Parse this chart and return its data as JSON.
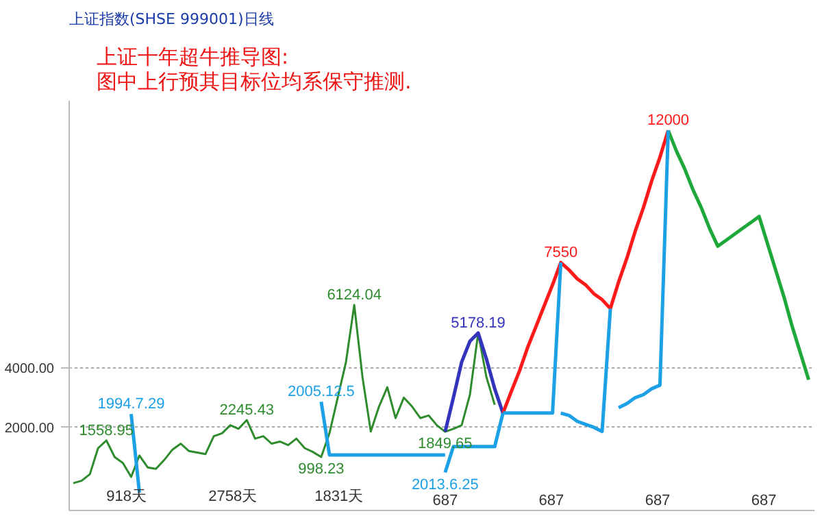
{
  "chart_data": {
    "type": "line",
    "title": "上证指数(SHSE 999001)日线",
    "subtitle": "上证十年超牛推导图:\n图中上行预其目标位均系保守推测.",
    "categories": [
      null,
      null,
      null,
      null,
      null,
      null,
      null,
      null,
      null,
      null,
      null,
      null,
      null,
      null,
      null,
      null,
      null,
      null,
      null,
      null,
      null,
      null,
      null,
      null,
      null,
      null,
      null,
      null,
      null,
      null,
      null,
      null,
      null,
      null,
      null,
      null,
      null,
      null,
      null,
      null,
      null,
      null,
      null,
      null,
      null,
      null,
      null,
      null,
      null,
      null,
      null,
      null,
      null,
      null,
      null,
      null,
      null,
      null,
      null,
      null,
      null,
      null,
      null,
      null,
      null,
      null,
      null,
      null,
      null,
      null,
      null,
      null,
      null,
      null,
      null,
      null,
      null,
      null,
      null,
      null,
      null,
      null,
      null,
      null,
      null,
      null,
      null,
      null,
      null,
      null
    ],
    "ylim": [
      -800,
      13000
    ],
    "yticks": [
      {
        "value": 2000,
        "label": "2000.00"
      },
      {
        "value": 4000,
        "label": "4000.00"
      }
    ],
    "tick_labels": "y",
    "grid": "y",
    "annotations": [
      "918天",
      "2758天",
      "1831天",
      "687",
      "687",
      "687",
      "687"
    ],
    "series": [
      {
        "color": "#2e8b2e",
        "values": [
          120,
          200,
          420,
          1300,
          1558.95,
          1000,
          800,
          330,
          1050,
          650,
          600,
          900,
          1250,
          1450,
          1200,
          1150,
          1100,
          1700,
          1800,
          2070,
          1950,
          2245.43,
          1620,
          1700,
          1450,
          1520,
          1400,
          1620,
          1300,
          1170,
          998.23,
          1800,
          3000,
          4200,
          6124.04,
          3690,
          1860,
          2700,
          3350,
          2310,
          3000,
          2700,
          2310,
          2400,
          2070,
          1849.65,
          1950,
          2070,
          3100,
          5178.19,
          3690,
          2760,
          null,
          null,
          null,
          null,
          null,
          null,
          null,
          null,
          null,
          null,
          null,
          null,
          null,
          null,
          null,
          null,
          null,
          null,
          null,
          null,
          null,
          null,
          null,
          null,
          null,
          null,
          null,
          null,
          null,
          null,
          null,
          null,
          null,
          null,
          null,
          null,
          null,
          null
        ],
        "value_labels": [
          null,
          null,
          null,
          null,
          "1558.95",
          null,
          null,
          null,
          null,
          null,
          null,
          null,
          null,
          null,
          null,
          null,
          null,
          null,
          null,
          null,
          null,
          "2245.43",
          null,
          null,
          null,
          null,
          null,
          null,
          null,
          null,
          "998.23",
          null,
          null,
          null,
          "6124.04",
          null,
          null,
          null,
          null,
          null,
          null,
          null,
          null,
          null,
          null,
          "1849.65",
          null,
          null,
          null,
          null,
          null,
          null,
          null,
          null,
          null,
          null,
          null,
          null,
          null,
          null,
          null,
          null,
          null,
          null,
          null,
          null,
          null,
          null,
          null,
          null,
          null,
          null,
          null,
          null,
          null,
          null,
          null,
          null,
          null,
          null,
          null,
          null,
          null,
          null,
          null,
          null,
          null,
          null,
          null,
          null
        ]
      },
      {
        "color": "#3333bb",
        "values": [
          null,
          null,
          null,
          null,
          null,
          null,
          null,
          null,
          null,
          null,
          null,
          null,
          null,
          null,
          null,
          null,
          null,
          null,
          null,
          null,
          null,
          null,
          null,
          null,
          null,
          null,
          null,
          null,
          null,
          null,
          null,
          null,
          null,
          null,
          null,
          null,
          null,
          null,
          null,
          null,
          null,
          null,
          null,
          null,
          null,
          1849.65,
          3000,
          4200,
          4900,
          5178.19,
          4300,
          3300,
          2480,
          null,
          null,
          null,
          null,
          null,
          null,
          null,
          null,
          null,
          null,
          null,
          null,
          null,
          null,
          null,
          null,
          null,
          null,
          null,
          null,
          null,
          null,
          null,
          null,
          null,
          null,
          null,
          null,
          null,
          null,
          null,
          null,
          null,
          null,
          null,
          null,
          null
        ],
        "value_labels": [
          null,
          null,
          null,
          null,
          null,
          null,
          null,
          null,
          null,
          null,
          null,
          null,
          null,
          null,
          null,
          null,
          null,
          null,
          null,
          null,
          null,
          null,
          null,
          null,
          null,
          null,
          null,
          null,
          null,
          null,
          null,
          null,
          null,
          null,
          null,
          null,
          null,
          null,
          null,
          null,
          null,
          null,
          null,
          null,
          null,
          null,
          null,
          null,
          null,
          "5178.19",
          null,
          null,
          null,
          null,
          null,
          null,
          null,
          null,
          null,
          null,
          null,
          null,
          null,
          null,
          null,
          null,
          null,
          null,
          null,
          null,
          null,
          null,
          null,
          null,
          null,
          null,
          null,
          null,
          null,
          null,
          null,
          null,
          null,
          null,
          null,
          null,
          null,
          null,
          null,
          null
        ]
      },
      {
        "color": "#ff1a1a",
        "values": [
          null,
          null,
          null,
          null,
          null,
          null,
          null,
          null,
          null,
          null,
          null,
          null,
          null,
          null,
          null,
          null,
          null,
          null,
          null,
          null,
          null,
          null,
          null,
          null,
          null,
          null,
          null,
          null,
          null,
          null,
          null,
          null,
          null,
          null,
          null,
          null,
          null,
          null,
          null,
          null,
          null,
          null,
          null,
          null,
          null,
          null,
          null,
          null,
          null,
          null,
          null,
          null,
          2480,
          3200,
          3900,
          4700,
          5400,
          6100,
          6800,
          7550,
          7300,
          7000,
          6800,
          6500,
          6300,
          6000,
          6900,
          7700,
          8600,
          9400,
          10300,
          11100,
          12000,
          null,
          null,
          null,
          null,
          null,
          null,
          null,
          null,
          null,
          null,
          null,
          null,
          null,
          null,
          null,
          null,
          null
        ],
        "value_labels": [
          null,
          null,
          null,
          null,
          null,
          null,
          null,
          null,
          null,
          null,
          null,
          null,
          null,
          null,
          null,
          null,
          null,
          null,
          null,
          null,
          null,
          null,
          null,
          null,
          null,
          null,
          null,
          null,
          null,
          null,
          null,
          null,
          null,
          null,
          null,
          null,
          null,
          null,
          null,
          null,
          null,
          null,
          null,
          null,
          null,
          null,
          null,
          null,
          null,
          null,
          null,
          null,
          null,
          null,
          null,
          null,
          null,
          null,
          null,
          "7550",
          null,
          null,
          null,
          null,
          null,
          null,
          null,
          null,
          null,
          null,
          null,
          null,
          "12000",
          null,
          null,
          null,
          null,
          null,
          null,
          null,
          null,
          null,
          null,
          null,
          null,
          null,
          null,
          null,
          null,
          null
        ]
      },
      {
        "color": "#1fa83a",
        "values": [
          null,
          null,
          null,
          null,
          null,
          null,
          null,
          null,
          null,
          null,
          null,
          null,
          null,
          null,
          null,
          null,
          null,
          null,
          null,
          null,
          null,
          null,
          null,
          null,
          null,
          null,
          null,
          null,
          null,
          null,
          null,
          null,
          null,
          null,
          null,
          null,
          null,
          null,
          null,
          null,
          null,
          null,
          null,
          null,
          null,
          null,
          null,
          null,
          null,
          null,
          null,
          null,
          null,
          null,
          null,
          null,
          null,
          null,
          null,
          null,
          null,
          null,
          null,
          null,
          null,
          null,
          null,
          null,
          null,
          null,
          null,
          null,
          12000,
          11300,
          10700,
          10000,
          9400,
          8700,
          8100,
          8300,
          8500,
          8700,
          8900,
          9100,
          8200,
          7300,
          6400,
          5400,
          4500,
          3600
        ]
      },
      {
        "color": "#1ca0e6",
        "values": [
          null,
          null,
          null,
          null,
          null,
          null,
          null,
          2450,
          -200,
          null,
          null,
          null,
          null,
          null,
          null,
          null,
          null,
          null,
          null,
          null,
          null,
          null,
          null,
          null,
          null,
          null,
          null,
          null,
          null,
          null,
          null,
          null,
          null,
          null,
          null,
          null,
          null,
          null,
          null,
          null,
          null,
          null,
          null,
          null,
          null,
          null,
          null,
          null,
          null,
          null,
          null,
          null,
          null,
          null,
          null,
          null,
          null,
          null,
          null,
          null,
          null,
          null,
          null,
          null,
          null,
          null,
          null,
          null,
          null,
          null,
          null,
          null,
          null,
          null,
          null,
          null,
          null,
          null,
          null,
          null,
          null,
          null,
          null,
          null,
          null,
          null,
          null,
          null,
          null,
          null
        ],
        "value_labels": [
          null,
          null,
          null,
          null,
          null,
          null,
          null,
          "1994.7.29",
          null,
          null,
          null,
          null,
          null,
          null,
          null,
          null,
          null,
          null,
          null,
          null,
          null,
          null,
          null,
          null,
          null,
          null,
          null,
          null,
          null,
          null,
          null,
          null,
          null,
          null,
          null,
          null,
          null,
          null,
          null,
          null,
          null,
          null,
          null,
          null,
          null,
          null,
          null,
          null,
          null,
          null,
          null,
          null,
          null,
          null,
          null,
          null,
          null,
          null,
          null,
          null,
          null,
          null,
          null,
          null,
          null,
          null,
          null,
          null,
          null,
          null,
          null,
          null,
          null,
          null,
          null,
          null,
          null,
          null,
          null,
          null,
          null,
          null,
          null,
          null,
          null,
          null,
          null,
          null,
          null,
          null
        ]
      },
      {
        "color": "#1ca0e6",
        "values": [
          null,
          null,
          null,
          null,
          null,
          null,
          null,
          null,
          null,
          null,
          null,
          null,
          null,
          null,
          null,
          null,
          null,
          null,
          null,
          null,
          null,
          null,
          null,
          null,
          null,
          null,
          null,
          null,
          null,
          null,
          2860,
          1070,
          1070,
          1070,
          1070,
          1070,
          1070,
          1070,
          1070,
          1070,
          1070,
          1070,
          1070,
          1070,
          1070,
          1070,
          null,
          null,
          null,
          null,
          null,
          null,
          null,
          null,
          null,
          null,
          null,
          null,
          null,
          null,
          null,
          null,
          null,
          null,
          null,
          null,
          null,
          null,
          null,
          null,
          null,
          null,
          null,
          null,
          null,
          null,
          null,
          null,
          null,
          null,
          null,
          null,
          null,
          null,
          null,
          null,
          null,
          null,
          null,
          null
        ],
        "value_labels": [
          null,
          null,
          null,
          null,
          null,
          null,
          null,
          null,
          null,
          null,
          null,
          null,
          null,
          null,
          null,
          null,
          null,
          null,
          null,
          null,
          null,
          null,
          null,
          null,
          null,
          null,
          null,
          null,
          null,
          null,
          "2005.12.5",
          null,
          null,
          null,
          null,
          null,
          null,
          null,
          null,
          null,
          null,
          null,
          null,
          null,
          null,
          null,
          null,
          null,
          null,
          null,
          null,
          null,
          null,
          null,
          null,
          null,
          null,
          null,
          null,
          null,
          null,
          null,
          null,
          null,
          null,
          null,
          null,
          null,
          null,
          null,
          null,
          null,
          null,
          null,
          null,
          null,
          null,
          null,
          null,
          null,
          null,
          null,
          null,
          null,
          null,
          null,
          null,
          null,
          null,
          null
        ]
      },
      {
        "color": "#1ca0e6",
        "values": [
          null,
          null,
          null,
          null,
          null,
          null,
          null,
          null,
          null,
          null,
          null,
          null,
          null,
          null,
          null,
          null,
          null,
          null,
          null,
          null,
          null,
          null,
          null,
          null,
          null,
          null,
          null,
          null,
          null,
          null,
          null,
          null,
          null,
          null,
          null,
          null,
          null,
          null,
          null,
          null,
          null,
          null,
          null,
          null,
          null,
          480,
          1350,
          1350,
          1350,
          1350,
          1350,
          1350,
          2480,
          null,
          null,
          null,
          null,
          null,
          null,
          null,
          null,
          null,
          null,
          null,
          null,
          null,
          null,
          null,
          null,
          null,
          null,
          null,
          null,
          null,
          null,
          null,
          null,
          null,
          null,
          null,
          null,
          null,
          null,
          null,
          null,
          null,
          null,
          null,
          null,
          null
        ],
        "value_labels": [
          null,
          null,
          null,
          null,
          null,
          null,
          null,
          null,
          null,
          null,
          null,
          null,
          null,
          null,
          null,
          null,
          null,
          null,
          null,
          null,
          null,
          null,
          null,
          null,
          null,
          null,
          null,
          null,
          null,
          null,
          null,
          null,
          null,
          null,
          null,
          null,
          null,
          null,
          null,
          null,
          null,
          null,
          null,
          null,
          null,
          "2013.6.25",
          null,
          null,
          null,
          null,
          null,
          null,
          null,
          null,
          null,
          null,
          null,
          null,
          null,
          null,
          null,
          null,
          null,
          null,
          null,
          null,
          null,
          null,
          null,
          null,
          null,
          null,
          null,
          null,
          null,
          null,
          null,
          null,
          null,
          null,
          null,
          null,
          null,
          null,
          null,
          null,
          null,
          null,
          null,
          null
        ]
      },
      {
        "color": "#1ca0e6",
        "values": [
          null,
          null,
          null,
          null,
          null,
          null,
          null,
          null,
          null,
          null,
          null,
          null,
          null,
          null,
          null,
          null,
          null,
          null,
          null,
          null,
          null,
          null,
          null,
          null,
          null,
          null,
          null,
          null,
          null,
          null,
          null,
          null,
          null,
          null,
          null,
          null,
          null,
          null,
          null,
          null,
          null,
          null,
          null,
          null,
          null,
          null,
          null,
          null,
          null,
          null,
          null,
          null,
          2480,
          2480,
          2480,
          2480,
          2480,
          2480,
          2480,
          7550,
          null,
          null,
          null,
          null,
          null,
          null,
          null,
          null,
          null,
          null,
          null,
          null,
          null,
          null,
          null,
          null,
          null,
          null,
          null,
          null,
          null,
          null,
          null,
          null,
          null,
          null,
          null,
          null,
          null,
          null
        ]
      },
      {
        "color": "#1ca0e6",
        "values": [
          null,
          null,
          null,
          null,
          null,
          null,
          null,
          null,
          null,
          null,
          null,
          null,
          null,
          null,
          null,
          null,
          null,
          null,
          null,
          null,
          null,
          null,
          null,
          null,
          null,
          null,
          null,
          null,
          null,
          null,
          null,
          null,
          null,
          null,
          null,
          null,
          null,
          null,
          null,
          null,
          null,
          null,
          null,
          null,
          null,
          null,
          null,
          null,
          null,
          null,
          null,
          null,
          null,
          null,
          null,
          null,
          null,
          null,
          null,
          2480,
          2400,
          2200,
          2100,
          2000,
          1860,
          6000,
          null,
          null,
          null,
          null,
          null,
          null,
          null,
          null,
          null,
          null,
          null,
          null,
          null,
          null,
          null,
          null,
          null,
          null,
          null,
          null,
          null,
          null,
          null,
          null
        ]
      },
      {
        "color": "#1ca0e6",
        "values": [
          null,
          null,
          null,
          null,
          null,
          null,
          null,
          null,
          null,
          null,
          null,
          null,
          null,
          null,
          null,
          null,
          null,
          null,
          null,
          null,
          null,
          null,
          null,
          null,
          null,
          null,
          null,
          null,
          null,
          null,
          null,
          null,
          null,
          null,
          null,
          null,
          null,
          null,
          null,
          null,
          null,
          null,
          null,
          null,
          null,
          null,
          null,
          null,
          null,
          null,
          null,
          null,
          null,
          null,
          null,
          null,
          null,
          null,
          null,
          null,
          null,
          null,
          null,
          null,
          null,
          null,
          2660,
          2800,
          3000,
          3100,
          3300,
          3420,
          12000,
          null,
          null,
          null,
          null,
          null,
          null,
          null,
          null,
          null,
          null,
          null,
          null,
          null,
          null,
          null,
          null,
          null
        ]
      }
    ]
  }
}
